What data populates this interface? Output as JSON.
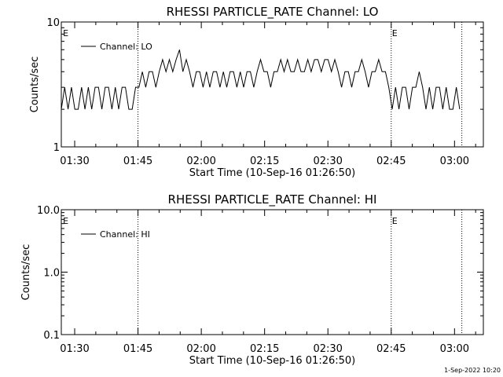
{
  "footer": {
    "timestamp": "1-Sep-2022 10:20"
  },
  "chart_data": [
    {
      "type": "line",
      "title": "RHESSI PARTICLE_RATE Channel: LO",
      "xlabel": "Start Time (10-Sep-16 01:26:50)",
      "ylabel": "Counts/sec",
      "x_unit": "minutes after 01:26:50",
      "xlim": [
        0,
        100
      ],
      "ylim": [
        1,
        10
      ],
      "yscale": "log",
      "x_ticks": [
        3.17,
        18.17,
        33.17,
        48.17,
        63.17,
        78.17,
        93.17
      ],
      "x_tick_labels": [
        "01:30",
        "01:45",
        "02:00",
        "02:15",
        "02:30",
        "02:45",
        "03:00"
      ],
      "y_ticks": [
        1,
        10
      ],
      "y_tick_labels": [
        "1",
        "10"
      ],
      "vlines": [
        {
          "x": 18.17,
          "label": ""
        },
        {
          "x": 78.17,
          "label": "E"
        },
        {
          "x": 94.9,
          "label": ""
        },
        {
          "x": 0.2,
          "label": "E"
        }
      ],
      "legend": {
        "position": "top-left",
        "entries": [
          "Channel: LO"
        ]
      },
      "series": [
        {
          "name": "Channel: LO",
          "x": [
            0.0,
            0.8,
            1.6,
            2.4,
            3.2,
            4.0,
            4.8,
            5.6,
            6.4,
            7.2,
            8.0,
            8.8,
            9.6,
            10.4,
            11.2,
            12.0,
            12.8,
            13.6,
            14.4,
            15.2,
            16.0,
            16.8,
            17.6,
            18.4,
            19.2,
            20.0,
            20.8,
            21.6,
            22.4,
            23.2,
            24.0,
            24.8,
            25.6,
            26.4,
            27.2,
            28.0,
            28.8,
            29.6,
            30.4,
            31.2,
            32.0,
            32.8,
            33.6,
            34.4,
            35.2,
            36.0,
            36.8,
            37.6,
            38.4,
            39.2,
            40.0,
            40.8,
            41.6,
            42.4,
            43.2,
            44.0,
            44.8,
            45.6,
            46.4,
            47.2,
            48.0,
            48.8,
            49.6,
            50.4,
            51.2,
            52.0,
            52.8,
            53.6,
            54.4,
            55.2,
            56.0,
            56.8,
            57.6,
            58.4,
            59.2,
            60.0,
            60.8,
            61.6,
            62.4,
            63.2,
            64.0,
            64.8,
            65.6,
            66.4,
            67.2,
            68.0,
            68.8,
            69.6,
            70.4,
            71.2,
            72.0,
            72.8,
            73.6,
            74.4,
            75.2,
            76.0,
            76.8,
            77.6,
            78.4,
            79.2,
            80.0,
            80.8,
            81.6,
            82.4,
            83.2,
            84.0,
            84.8,
            85.6,
            86.4,
            87.2,
            88.0,
            88.8,
            89.6,
            90.4,
            91.2,
            92.0,
            92.8,
            93.6,
            94.4
          ],
          "y": [
            2,
            3,
            2,
            3,
            2,
            2,
            3,
            2,
            3,
            2,
            3,
            3,
            2,
            3,
            3,
            2,
            3,
            2,
            3,
            3,
            2,
            2,
            3,
            3,
            4,
            3,
            4,
            4,
            3,
            4,
            5,
            4,
            5,
            4,
            5,
            6,
            4,
            5,
            4,
            3,
            4,
            4,
            3,
            4,
            3,
            4,
            4,
            3,
            4,
            3,
            4,
            4,
            3,
            4,
            3,
            4,
            4,
            3,
            4,
            5,
            4,
            4,
            3,
            4,
            4,
            5,
            4,
            5,
            4,
            4,
            5,
            4,
            4,
            5,
            4,
            5,
            5,
            4,
            5,
            5,
            4,
            5,
            4,
            3,
            4,
            4,
            3,
            4,
            4,
            5,
            4,
            3,
            4,
            4,
            5,
            4,
            4,
            3,
            2,
            3,
            2,
            3,
            3,
            2,
            3,
            3,
            4,
            3,
            2,
            3,
            2,
            3,
            3,
            2,
            3,
            2,
            2,
            3,
            2
          ]
        }
      ]
    },
    {
      "type": "line",
      "title": "RHESSI PARTICLE_RATE Channel: HI",
      "xlabel": "Start Time (10-Sep-16 01:26:50)",
      "ylabel": "Counts/sec",
      "x_unit": "minutes after 01:26:50",
      "xlim": [
        0,
        100
      ],
      "ylim": [
        0.1,
        10
      ],
      "yscale": "log",
      "x_ticks": [
        3.17,
        18.17,
        33.17,
        48.17,
        63.17,
        78.17,
        93.17
      ],
      "x_tick_labels": [
        "01:30",
        "01:45",
        "02:00",
        "02:15",
        "02:30",
        "02:45",
        "03:00"
      ],
      "y_ticks": [
        0.1,
        1,
        10
      ],
      "y_tick_labels": [
        "0.1",
        "1.0",
        "10.0"
      ],
      "vlines": [
        {
          "x": 18.17,
          "label": ""
        },
        {
          "x": 78.17,
          "label": "E"
        },
        {
          "x": 94.9,
          "label": ""
        },
        {
          "x": 0.2,
          "label": "E"
        }
      ],
      "legend": {
        "position": "top-left",
        "entries": [
          "Channel: HI"
        ]
      },
      "series": [
        {
          "name": "Channel: HI",
          "x": [],
          "y": []
        }
      ]
    }
  ]
}
